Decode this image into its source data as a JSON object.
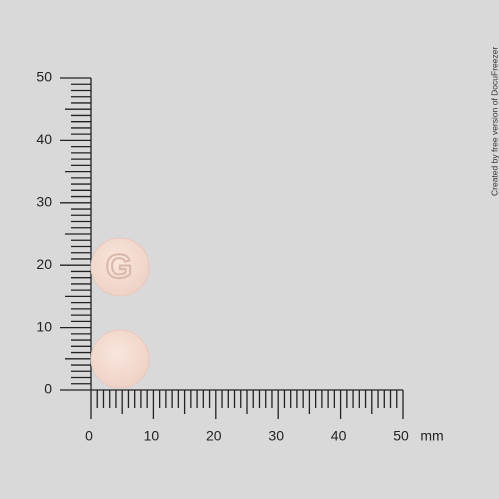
{
  "vertical_ruler": {
    "labels": [
      "50",
      "40",
      "30",
      "20",
      "10",
      "0"
    ]
  },
  "horizontal_ruler": {
    "labels": [
      "0",
      "10",
      "20",
      "30",
      "40",
      "50"
    ],
    "unit": "mm"
  },
  "pills": [
    {
      "imprint": "G"
    },
    {
      "imprint": ""
    }
  ],
  "watermark": "Created by free version of DocuFreezer"
}
